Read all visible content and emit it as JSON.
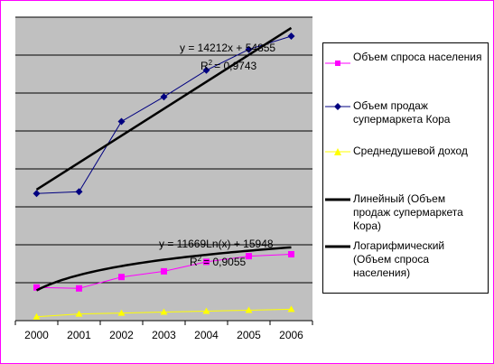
{
  "chart_data": {
    "type": "line",
    "categories": [
      "2000",
      "2001",
      "2002",
      "2003",
      "2004",
      "2005",
      "2006"
    ],
    "ylim": [
      0,
      160000
    ],
    "grid": true,
    "legend_position": "right",
    "series": [
      {
        "name": "Объем спроса населения",
        "values": [
          17500,
          17000,
          23000,
          26000,
          31000,
          34000,
          35000
        ],
        "color": "#ff00ff",
        "marker": "square"
      },
      {
        "name": "Объем продаж супермаркета Кора",
        "values": [
          67000,
          68000,
          105000,
          118000,
          132000,
          143000,
          150000
        ],
        "color": "#000080",
        "marker": "diamond"
      },
      {
        "name": "Среднедушевой доход",
        "values": [
          2000,
          3500,
          4000,
          4500,
          5000,
          5500,
          6000
        ],
        "color": "#ffff00",
        "marker": "triangle"
      }
    ],
    "trendlines": [
      {
        "name": "Линейный (Объем продаж супермаркета Кора)",
        "type": "linear",
        "of_series": "Объем продаж супермаркета Кора",
        "equation": "y = 14212x + 54855",
        "r2": "= 0,9743",
        "slope": 14212,
        "intercept": 54855,
        "color": "#000000"
      },
      {
        "name": "Логарифмический (Объем спроса населения)",
        "type": "logarithmic",
        "of_series": "Объем спроса населения",
        "equation": "y = 11669Ln(x) + 15948",
        "r2": "= 0,9055",
        "coefficient": 11669,
        "intercept": 15948,
        "color": "#000000"
      }
    ]
  },
  "colors": {
    "plot_background": "#c0c0c0",
    "frame_border": "#ff00ff",
    "trend": "#000000"
  }
}
